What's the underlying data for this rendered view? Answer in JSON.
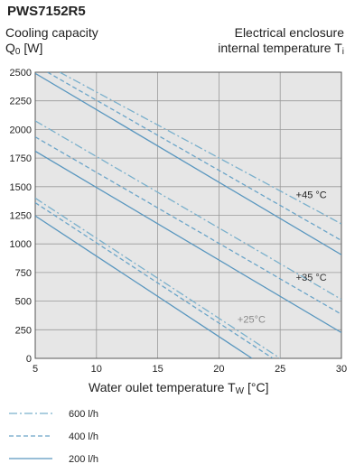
{
  "header": {
    "title": "PWS7152R5",
    "ylabel_line1": "Cooling capacity",
    "ylabel_main": "Q",
    "ylabel_sub": "0",
    "ylabel_unit": " [W]",
    "right_line1": "Electrical enclosure",
    "right_main": "internal temperature T",
    "right_sub": "i",
    "xlabel_main": "Water oulet temperature  T",
    "xlabel_sub": "W",
    "xlabel_unit": " [°C]"
  },
  "colors": {
    "line_600": "#7ab0cc",
    "line_400": "#6aa4c8",
    "line_200": "#5a97bf",
    "plot_bg": "#e6e6e6",
    "grid": "#999999"
  },
  "chart_data": {
    "type": "line",
    "xlim": [
      5,
      30
    ],
    "ylim": [
      0,
      2500
    ],
    "xticks": [
      5,
      10,
      15,
      20,
      25,
      30
    ],
    "yticks": [
      0,
      250,
      500,
      750,
      1000,
      1250,
      1500,
      1750,
      2000,
      2250,
      2500
    ],
    "grid": true,
    "legend_position": "bottom-left",
    "legend": [
      {
        "label": "600 l/h",
        "style": "dashdot"
      },
      {
        "label": "400 l/h",
        "style": "dashed"
      },
      {
        "label": "200 l/h",
        "style": "solid"
      }
    ],
    "annotations": [
      {
        "text": "+45 °C",
        "x": 28.8,
        "y": 1400
      },
      {
        "text": "+35 °C",
        "x": 28.8,
        "y": 680
      },
      {
        "text": "+25°C",
        "x": 23.8,
        "y": 310
      }
    ],
    "series": [
      {
        "flow": "600 l/h",
        "temp": "+45 °C",
        "style": "dashdot",
        "x": [
          7,
          30
        ],
        "y": [
          2500,
          1175
        ]
      },
      {
        "flow": "400 l/h",
        "temp": "+45 °C",
        "style": "dashed",
        "x": [
          6,
          30
        ],
        "y": [
          2500,
          1030
        ]
      },
      {
        "flow": "200 l/h",
        "temp": "+45 °C",
        "style": "solid",
        "x": [
          5,
          30
        ],
        "y": [
          2490,
          905
        ]
      },
      {
        "flow": "600 l/h",
        "temp": "+35 °C",
        "style": "dashdot",
        "x": [
          5,
          30
        ],
        "y": [
          2075,
          515
        ]
      },
      {
        "flow": "400 l/h",
        "temp": "+35 °C",
        "style": "dashed",
        "x": [
          5,
          30
        ],
        "y": [
          1935,
          385
        ]
      },
      {
        "flow": "200 l/h",
        "temp": "+35 °C",
        "style": "solid",
        "x": [
          5,
          30
        ],
        "y": [
          1810,
          225
        ]
      },
      {
        "flow": "600 l/h",
        "temp": "+25°C",
        "style": "dashdot",
        "x": [
          5,
          25
        ],
        "y": [
          1400,
          0
        ]
      },
      {
        "flow": "400 l/h",
        "temp": "+25°C",
        "style": "dashed",
        "x": [
          5,
          24.4
        ],
        "y": [
          1360,
          0
        ]
      },
      {
        "flow": "200 l/h",
        "temp": "+25°C",
        "style": "solid",
        "x": [
          5,
          22.7
        ],
        "y": [
          1245,
          0
        ]
      }
    ]
  }
}
